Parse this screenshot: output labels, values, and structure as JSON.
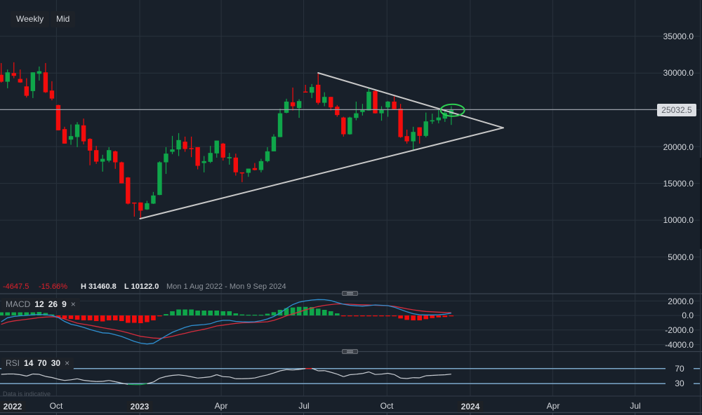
{
  "toolbar": {
    "interval_label": "Weekly",
    "price_type_label": "Mid"
  },
  "info_bar": {
    "change": "-4647.5",
    "change_pct": "-15.66%",
    "high_prefix": "H",
    "high": "31460.8",
    "low_prefix": "L",
    "low": "10122.0",
    "range": "Mon 1 Aug 2022 - Mon 9 Sep 2024"
  },
  "price_axis": {
    "labels": [
      "35000.0",
      "30000.0",
      "20000.0",
      "15000.0",
      "10000.0",
      "5000.0"
    ],
    "current_price": "25032.5"
  },
  "macd": {
    "name": "MACD",
    "fast": "12",
    "slow": "26",
    "signal": "9",
    "close_glyph": "×",
    "axis_labels": [
      "2000.0",
      "0.0",
      "-2000.0",
      "-4000.0"
    ]
  },
  "rsi": {
    "name": "RSI",
    "period": "14",
    "upper": "70",
    "lower": "30",
    "close_glyph": "×",
    "axis_labels": [
      "70",
      "30"
    ]
  },
  "footer": {
    "note": "Data is indicative"
  },
  "time_axis": {
    "labels": [
      "2022",
      "Oct",
      "2023",
      "Apr",
      "Jul",
      "Oct",
      "2024",
      "Apr",
      "Jul"
    ]
  },
  "colors": {
    "background": "#18202a",
    "up": "#0fa64a",
    "down": "#f20c0c",
    "macd_line": "#2f8fd0",
    "signal_line": "#d42c3c",
    "rsi_line": "#c8ccd2",
    "rsi_bands": "#7aa6c8",
    "trendline": "#c8c8c8",
    "highlight": "#2ed052"
  },
  "chart_data": {
    "type": "candlestick",
    "title": "Weekly Mid",
    "interval": "Weekly",
    "x_start": "2022-08-01",
    "x_end": "2024-09-09",
    "ylim": [
      100,
      39930
    ],
    "price_ticks": [
      35000,
      30000,
      25000,
      20000,
      15000,
      10000,
      5000
    ],
    "last_price": 25032.5,
    "high": 31460.8,
    "low": 10122.0,
    "change": -4647.5,
    "change_pct": -15.66,
    "time_ticks": [
      {
        "label": "Oct",
        "date": "2022-10-01"
      },
      {
        "label": "2023",
        "date": "2023-01-01",
        "year": true
      },
      {
        "label": "Apr",
        "date": "2023-04-01"
      },
      {
        "label": "Jul",
        "date": "2023-07-01"
      },
      {
        "label": "Oct",
        "date": "2023-10-01"
      },
      {
        "label": "2024",
        "date": "2024-01-01",
        "year": true
      },
      {
        "label": "Apr",
        "date": "2024-04-01"
      },
      {
        "label": "Jul",
        "date": "2024-07-01"
      }
    ],
    "candles_columns": [
      "week",
      "open",
      "high",
      "low",
      "close"
    ],
    "candles": [
      [
        "2022-08-01",
        29770,
        31360,
        28700,
        28820
      ],
      [
        "2022-08-08",
        28820,
        30480,
        27930,
        30100
      ],
      [
        "2022-08-15",
        30000,
        31460.8,
        29300,
        29620
      ],
      [
        "2022-08-22",
        29200,
        30480,
        28670,
        28720
      ],
      [
        "2022-08-29",
        28190,
        29300,
        26670,
        26910
      ],
      [
        "2022-09-05",
        27550,
        30100,
        26600,
        30100
      ],
      [
        "2022-09-12",
        29900,
        30890,
        28980,
        30250
      ],
      [
        "2022-09-19",
        30100,
        31360,
        27300,
        27390
      ],
      [
        "2022-09-26",
        27620,
        28890,
        26290,
        26530
      ],
      [
        "2022-10-03",
        25650,
        25700,
        22200,
        22220
      ],
      [
        "2022-10-10",
        22380,
        22700,
        20400,
        20410
      ],
      [
        "2022-10-17",
        20950,
        23010,
        20250,
        21430
      ],
      [
        "2022-10-24",
        21300,
        23330,
        19930,
        23010
      ],
      [
        "2022-10-31",
        22890,
        23810,
        20310,
        20720
      ],
      [
        "2022-11-07",
        21050,
        21140,
        17460,
        19460
      ],
      [
        "2022-11-14",
        19520,
        20100,
        17650,
        17960
      ],
      [
        "2022-11-21",
        17960,
        18890,
        16600,
        18340
      ],
      [
        "2022-11-28",
        18100,
        19930,
        17870,
        19520
      ],
      [
        "2022-12-05",
        19360,
        19460,
        16980,
        17870
      ],
      [
        "2022-12-12",
        17870,
        17960,
        15000,
        15010
      ],
      [
        "2022-12-19",
        15810,
        15870,
        12150,
        12250
      ],
      [
        "2022-12-26",
        12400,
        12410,
        10480,
        12350
      ],
      [
        "2023-01-02",
        12410,
        12410,
        10122,
        11300
      ],
      [
        "2023-01-09",
        11460,
        12630,
        11400,
        12310
      ],
      [
        "2023-01-16",
        12250,
        13840,
        12200,
        13360
      ],
      [
        "2023-01-23",
        13430,
        18000,
        13400,
        17870
      ],
      [
        "2023-01-30",
        17870,
        19930,
        16290,
        19050
      ],
      [
        "2023-02-06",
        19300,
        21460,
        18980,
        19620
      ],
      [
        "2023-02-13",
        19620,
        21840,
        18720,
        20890
      ],
      [
        "2023-02-20",
        20670,
        21360,
        19300,
        19680
      ],
      [
        "2023-02-27",
        19800,
        21360,
        18570,
        19770
      ],
      [
        "2023-03-06",
        19930,
        19930,
        16910,
        17390
      ],
      [
        "2023-03-13",
        17770,
        18720,
        16500,
        18030
      ],
      [
        "2023-03-20",
        17930,
        20100,
        17770,
        19140
      ],
      [
        "2023-03-27",
        19080,
        20820,
        18500,
        20820
      ],
      [
        "2023-04-03",
        20410,
        20510,
        18100,
        18510
      ],
      [
        "2023-04-10",
        18410,
        19140,
        17550,
        18570
      ],
      [
        "2023-04-17",
        18510,
        19050,
        16060,
        16510
      ],
      [
        "2023-04-24",
        16500,
        16500,
        15170,
        16440
      ],
      [
        "2023-05-01",
        16440,
        17010,
        15900,
        17010
      ],
      [
        "2023-05-08",
        17080,
        17770,
        16760,
        16820
      ],
      [
        "2023-05-15",
        16820,
        18340,
        16500,
        18030
      ],
      [
        "2023-05-22",
        18030,
        19930,
        17870,
        19360
      ],
      [
        "2023-05-29",
        19360,
        21680,
        19360,
        21360
      ],
      [
        "2023-06-05",
        21300,
        25170,
        21280,
        24530
      ],
      [
        "2023-06-12",
        24600,
        26510,
        24530,
        26120
      ],
      [
        "2023-06-19",
        26030,
        28030,
        24910,
        25490
      ],
      [
        "2023-06-26",
        25240,
        26440,
        23910,
        26190
      ],
      [
        "2023-07-03",
        27490,
        28400,
        27390,
        27430
      ],
      [
        "2023-07-10",
        27330,
        28510,
        26600,
        28100
      ],
      [
        "2023-07-17",
        28410,
        30000,
        25710,
        25960
      ],
      [
        "2023-07-24",
        25960,
        27390,
        25490,
        26760
      ],
      [
        "2023-07-31",
        26760,
        26760,
        24900,
        25330
      ],
      [
        "2023-08-07",
        25430,
        25650,
        24060,
        24290
      ],
      [
        "2023-08-14",
        23960,
        24060,
        21360,
        21680
      ],
      [
        "2023-08-21",
        21680,
        24060,
        21620,
        23960
      ],
      [
        "2023-08-28",
        23900,
        26120,
        23580,
        24530
      ],
      [
        "2023-09-04",
        24700,
        25810,
        24220,
        25010
      ],
      [
        "2023-09-11",
        24910,
        27870,
        24900,
        27460
      ],
      [
        "2023-09-18",
        27550,
        27710,
        24500,
        24530
      ],
      [
        "2023-09-25",
        24530,
        25490,
        23520,
        25010
      ],
      [
        "2023-10-02",
        25330,
        26190,
        24060,
        26120
      ],
      [
        "2023-10-09",
        26120,
        26820,
        25000,
        25100
      ],
      [
        "2023-10-16",
        25170,
        25810,
        21200,
        21300
      ],
      [
        "2023-10-23",
        21430,
        22310,
        20410,
        20720
      ],
      [
        "2023-10-30",
        20720,
        22700,
        19400,
        22000
      ],
      [
        "2023-11-06",
        22630,
        22630,
        20420,
        21460
      ],
      [
        "2023-11-13",
        21460,
        24630,
        21270,
        23430
      ],
      [
        "2023-11-20",
        23430,
        24480,
        23100,
        23580
      ],
      [
        "2023-11-27",
        23580,
        25010,
        23170,
        23960
      ],
      [
        "2023-12-04",
        23810,
        25010,
        23360,
        24600
      ],
      [
        "2023-12-11",
        24380,
        25490,
        22950,
        25032.5
      ]
    ],
    "trendlines": [
      {
        "name": "upper-resistance",
        "from": {
          "week_index": 50,
          "price": 30020
        },
        "to": {
          "week_index": 79.2,
          "price": 22560
        }
      },
      {
        "name": "lower-support",
        "from": {
          "week_index": 21.9,
          "price": 10200
        },
        "to": {
          "week_index": 79.2,
          "price": 22560
        }
      }
    ],
    "highlight_ellipse": {
      "week_index": 71.2,
      "price": 24950,
      "rx": 17,
      "ry": 8.5
    },
    "macd": {
      "params": [
        12,
        26,
        9
      ],
      "ylim": [
        -4800,
        2900
      ],
      "ticks": [
        2000,
        0,
        -2000,
        -4000
      ],
      "macd_line": [
        -870,
        -320,
        -140,
        -50,
        0,
        100,
        140,
        100,
        0,
        -290,
        -820,
        -1200,
        -1390,
        -1630,
        -1920,
        -2160,
        -2380,
        -2430,
        -2640,
        -2880,
        -3220,
        -3560,
        -3800,
        -3910,
        -3820,
        -3320,
        -2790,
        -2310,
        -1970,
        -1630,
        -1390,
        -1320,
        -1250,
        -1130,
        -830,
        -670,
        -670,
        -820,
        -870,
        -890,
        -870,
        -720,
        -480,
        -140,
        340,
        960,
        1490,
        1830,
        1990,
        2120,
        2180,
        2160,
        2040,
        1780,
        1540,
        1390,
        1330,
        1280,
        1350,
        1440,
        1390,
        1350,
        1130,
        820,
        500,
        240,
        100,
        70,
        70,
        100,
        170,
        320
      ],
      "signal_line": [
        -1220,
        -910,
        -750,
        -630,
        -530,
        -410,
        -290,
        -220,
        -170,
        -240,
        -480,
        -770,
        -1060,
        -1200,
        -1350,
        -1510,
        -1680,
        -1830,
        -1970,
        -2160,
        -2380,
        -2630,
        -2870,
        -2980,
        -3100,
        -3140,
        -3030,
        -2870,
        -2640,
        -2450,
        -2240,
        -2070,
        -1890,
        -1680,
        -1440,
        -1330,
        -1200,
        -1090,
        -1010,
        -980,
        -940,
        -910,
        -870,
        -670,
        -380,
        -50,
        220,
        480,
        770,
        1010,
        1220,
        1380,
        1490,
        1590,
        1570,
        1540,
        1490,
        1460,
        1440,
        1390,
        1370,
        1350,
        1250,
        1090,
        910,
        770,
        640,
        550,
        500,
        450,
        410,
        380
      ],
      "histogram": [
        430,
        430,
        430,
        430,
        430,
        430,
        480,
        340,
        140,
        -340,
        -430,
        -480,
        -580,
        -670,
        -670,
        -770,
        -820,
        -670,
        -670,
        -770,
        -1010,
        -1010,
        -1060,
        -910,
        -670,
        -100,
        190,
        580,
        820,
        820,
        820,
        670,
        670,
        670,
        670,
        580,
        580,
        290,
        140,
        100,
        100,
        100,
        240,
        450,
        770,
        990,
        1090,
        1180,
        1180,
        1150,
        930,
        770,
        580,
        290,
        -50,
        -100,
        -100,
        -100,
        -30,
        -100,
        -100,
        -100,
        -100,
        -410,
        -610,
        -670,
        -670,
        -510,
        -360,
        -260,
        -220,
        -100
      ]
    },
    "rsi": {
      "params": [
        14,
        70,
        30
      ],
      "ylim": [
        0,
        100
      ],
      "levels": [
        70,
        30
      ],
      "values": [
        54.6,
        55.6,
        55.6,
        53.7,
        50.0,
        55.6,
        54.6,
        49.1,
        46.3,
        41.7,
        38.5,
        40.2,
        43.0,
        38.9,
        37.0,
        35.6,
        36.1,
        38.5,
        35.2,
        31.5,
        28.1,
        27.4,
        27.4,
        30.0,
        34.3,
        44.4,
        49.1,
        51.9,
        53.3,
        51.3,
        48.1,
        44.8,
        46.3,
        48.1,
        53.7,
        48.5,
        47.8,
        43.0,
        43.1,
        43.5,
        45.0,
        49.4,
        53.1,
        58.3,
        63.9,
        67.0,
        66.1,
        67.6,
        69.8,
        70.4,
        63.9,
        64.4,
        60.2,
        55.2,
        48.5,
        53.7,
        55.0,
        56.9,
        61.1,
        54.3,
        55.2,
        57.4,
        54.1,
        44.8,
        43.5,
        45.9,
        45.4,
        50.9,
        51.9,
        52.8,
        53.5,
        55.2
      ]
    }
  }
}
